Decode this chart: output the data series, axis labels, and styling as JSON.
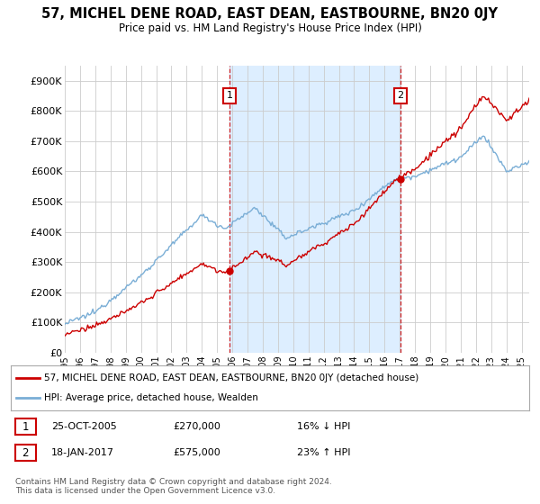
{
  "title": "57, MICHEL DENE ROAD, EAST DEAN, EASTBOURNE, BN20 0JY",
  "subtitle": "Price paid vs. HM Land Registry's House Price Index (HPI)",
  "legend_label_red": "57, MICHEL DENE ROAD, EAST DEAN, EASTBOURNE, BN20 0JY (detached house)",
  "legend_label_blue": "HPI: Average price, detached house, Wealden",
  "transaction1_date": "25-OCT-2005",
  "transaction1_price": "£270,000",
  "transaction1_hpi": "16% ↓ HPI",
  "transaction2_date": "18-JAN-2017",
  "transaction2_price": "£575,000",
  "transaction2_hpi": "23% ↑ HPI",
  "footer": "Contains HM Land Registry data © Crown copyright and database right 2024.\nThis data is licensed under the Open Government Licence v3.0.",
  "ylim": [
    0,
    950000
  ],
  "yticks": [
    0,
    100000,
    200000,
    300000,
    400000,
    500000,
    600000,
    700000,
    800000,
    900000
  ],
  "ytick_labels": [
    "£0",
    "£100K",
    "£200K",
    "£300K",
    "£400K",
    "£500K",
    "£600K",
    "£700K",
    "£800K",
    "£900K"
  ],
  "background_color": "#ffffff",
  "grid_color": "#cccccc",
  "red_color": "#cc0000",
  "blue_color": "#7aaed6",
  "shade_color": "#ddeeff",
  "transaction1_x": 2005.82,
  "transaction1_y": 270000,
  "transaction2_x": 2017.05,
  "transaction2_y": 575000,
  "xmin": 1995,
  "xmax": 2025.5,
  "marker_y": 850000
}
